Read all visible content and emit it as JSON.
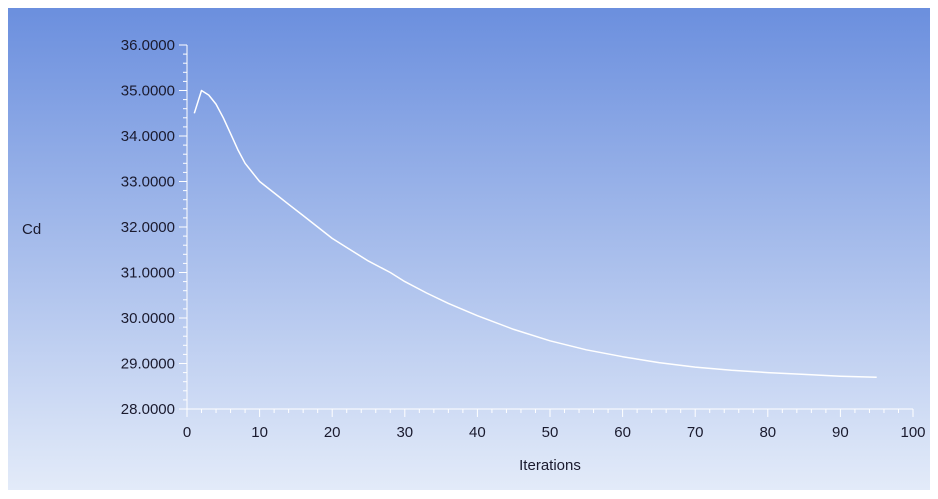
{
  "chart_data": {
    "type": "line",
    "xlabel": "Iterations",
    "ylabel": "Cd",
    "xlim": [
      0,
      100
    ],
    "ylim": [
      28,
      36
    ],
    "x_ticks": [
      "0",
      "10",
      "20",
      "30",
      "40",
      "50",
      "60",
      "70",
      "80",
      "90",
      "100"
    ],
    "y_ticks": [
      "28.0000",
      "29.0000",
      "30.0000",
      "31.0000",
      "32.0000",
      "33.0000",
      "34.0000",
      "35.0000",
      "36.0000"
    ],
    "grid": false,
    "series": [
      {
        "x": [
          1,
          2,
          3,
          4,
          5,
          6,
          7,
          8,
          9,
          10,
          12,
          14,
          16,
          18,
          20,
          22,
          25,
          28,
          30,
          33,
          36,
          40,
          45,
          50,
          55,
          60,
          65,
          70,
          75,
          80,
          85,
          90,
          95
        ],
        "values": [
          34.5,
          35.0,
          34.9,
          34.7,
          34.4,
          34.05,
          33.7,
          33.4,
          33.2,
          33.0,
          32.75,
          32.5,
          32.25,
          32.0,
          31.75,
          31.55,
          31.25,
          31.0,
          30.8,
          30.55,
          30.32,
          30.05,
          29.75,
          29.5,
          29.3,
          29.15,
          29.02,
          28.92,
          28.85,
          28.8,
          28.76,
          28.72,
          28.7
        ],
        "color": "#ffffff"
      }
    ],
    "background_gradient": [
      "#6b8fde",
      "#e3ebf9"
    ]
  }
}
